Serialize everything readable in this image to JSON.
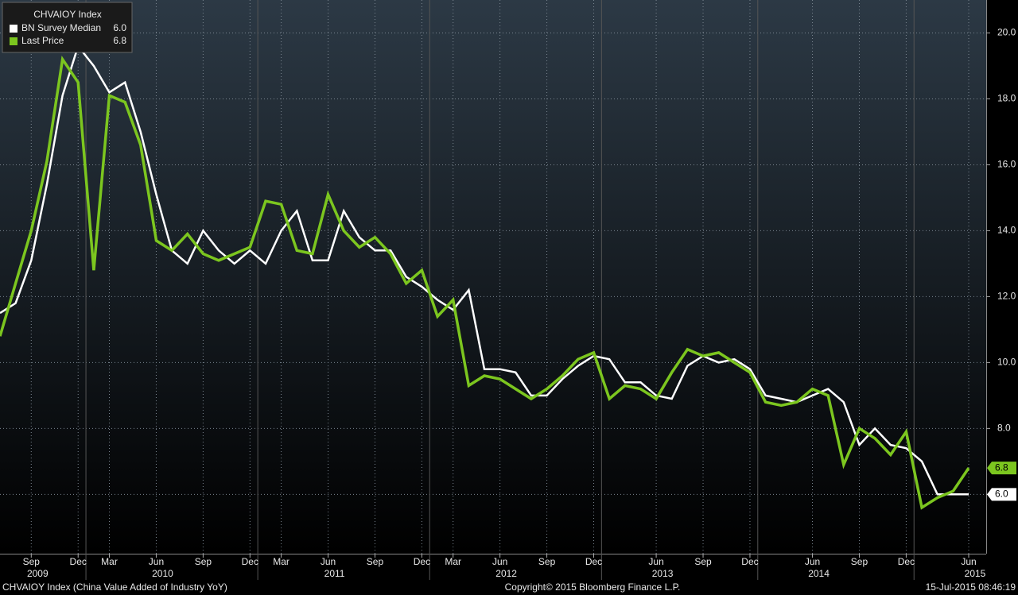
{
  "chart_data": {
    "type": "line",
    "legend_title": "CHVAIOY Index",
    "footer_left": "CHVAIOY Index (China Value Added of Industry YoY)",
    "footer_center": "Copyright© 2015 Bloomberg Finance L.P.",
    "footer_right": "15-Jul-2015 08:46:19",
    "categories": [
      null,
      null,
      "Sep",
      null,
      null,
      "Dec",
      null,
      "Mar",
      null,
      null,
      "Jun",
      null,
      null,
      "Sep",
      null,
      null,
      "Dec",
      null,
      "Mar",
      null,
      null,
      "Jun",
      null,
      null,
      "Sep",
      null,
      null,
      "Dec",
      null,
      "Mar",
      null,
      null,
      "Jun",
      null,
      null,
      "Sep",
      null,
      null,
      "Dec",
      null,
      null,
      null,
      "Jun",
      null,
      null,
      "Sep",
      null,
      null,
      "Dec",
      null,
      null,
      null,
      "Jun",
      null,
      null,
      "Sep",
      null,
      null,
      "Dec",
      null,
      null,
      null,
      "Jun"
    ],
    "years": [
      null,
      null,
      "2009",
      null,
      null,
      null,
      null,
      null,
      null,
      null,
      "2010",
      null,
      null,
      null,
      null,
      null,
      null,
      null,
      null,
      null,
      null,
      "2011",
      null,
      null,
      null,
      null,
      null,
      null,
      null,
      null,
      null,
      null,
      "2012",
      null,
      null,
      null,
      null,
      null,
      null,
      null,
      null,
      null,
      "2013",
      null,
      null,
      null,
      null,
      null,
      null,
      null,
      null,
      null,
      "2014",
      null,
      null,
      null,
      null,
      null,
      null,
      null,
      null,
      null,
      "2015"
    ],
    "series": [
      {
        "name": "BN Survey Median",
        "color": "#ffffff",
        "last_value_label": "6.0",
        "values": [
          11.5,
          11.8,
          13.1,
          15.4,
          18.1,
          19.6,
          19.0,
          18.2,
          18.5,
          17.0,
          15.1,
          13.4,
          13.0,
          14.0,
          13.4,
          13.0,
          13.4,
          13.0,
          14.0,
          14.6,
          13.1,
          13.1,
          14.6,
          13.8,
          13.4,
          13.4,
          12.6,
          12.3,
          11.9,
          11.6,
          12.2,
          9.8,
          9.8,
          9.7,
          9.0,
          9.0,
          9.5,
          9.9,
          10.2,
          10.1,
          9.4,
          9.4,
          9.0,
          8.9,
          9.9,
          10.2,
          10.0,
          10.1,
          9.8,
          9.0,
          8.9,
          8.8,
          9.0,
          9.2,
          8.8,
          7.5,
          8.0,
          7.5,
          7.4,
          7.0,
          6.0,
          6.0,
          6.0
        ]
      },
      {
        "name": "Last Price",
        "color": "#7cc61f",
        "last_value_label": "6.8",
        "values": [
          10.8,
          12.4,
          14.0,
          16.1,
          19.2,
          18.5,
          12.8,
          18.1,
          17.9,
          16.6,
          13.7,
          13.4,
          13.9,
          13.3,
          13.1,
          13.3,
          13.5,
          14.9,
          14.8,
          13.4,
          13.3,
          15.1,
          14.0,
          13.5,
          13.8,
          13.3,
          12.4,
          12.8,
          11.4,
          11.9,
          9.3,
          9.6,
          9.5,
          9.2,
          8.9,
          9.2,
          9.6,
          10.1,
          10.3,
          8.9,
          9.3,
          9.2,
          8.9,
          9.7,
          10.4,
          10.2,
          10.3,
          10.0,
          9.7,
          8.8,
          8.7,
          8.8,
          9.2,
          9.0,
          6.9,
          8.0,
          7.7,
          7.2,
          7.9,
          5.6,
          5.9,
          6.1,
          6.8
        ]
      }
    ],
    "ylim": [
      4.2,
      21
    ],
    "yticks": [
      {
        "value": 6,
        "label": "6.0"
      },
      {
        "value": 8,
        "label": "8.0"
      },
      {
        "value": 10,
        "label": "10.0"
      },
      {
        "value": 12,
        "label": "12.0"
      },
      {
        "value": 14,
        "label": "14.0"
      },
      {
        "value": 16,
        "label": "16.0"
      },
      {
        "value": 18,
        "label": "18.0"
      },
      {
        "value": 20,
        "label": "20.0"
      }
    ],
    "grid": true
  }
}
